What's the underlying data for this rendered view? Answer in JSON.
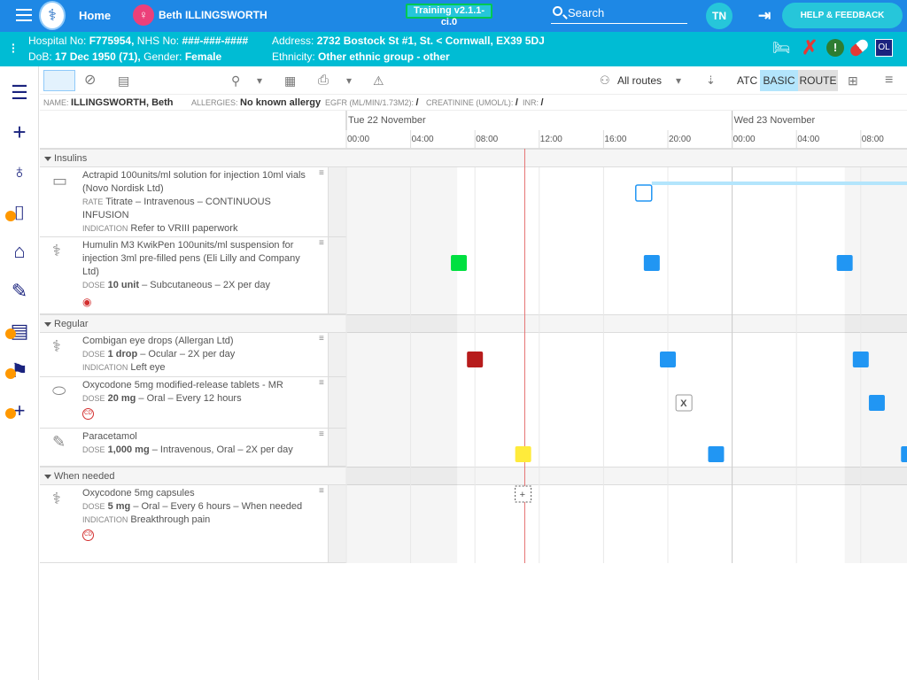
{
  "topbar": {
    "home": "Home",
    "patient": "Beth ILLINGSWORTH",
    "training": "Training v2.1.1-ci.0",
    "search": "Search",
    "initials": "TN",
    "help": "HELP & FEEDBACK"
  },
  "patient": {
    "hospital_no_label": "Hospital No:",
    "hospital_no": "F775954,",
    "nhs_label": "NHS No:",
    "nhs": "###-###-####",
    "dob_label": "DoB:",
    "dob": "17 Dec 1950 (71),",
    "gender_label": "Gender:",
    "gender": "Female",
    "address_label": "Address:",
    "address": "2732 Bostock St #1, St. < Cornwall, EX39 5DJ",
    "ethnicity_label": "Ethnicity:",
    "ethnicity": "Other ethnic group - other",
    "ol": "OL"
  },
  "toolbar": {
    "routes": "All routes",
    "atc": "ATC",
    "basic": "BASIC",
    "route": "ROUTE"
  },
  "namebar": {
    "name_label": "NAME:",
    "name": "ILLINGSWORTH, Beth",
    "allergies_label": "ALLERGIES:",
    "allergies": "No known allergy",
    "egfr_label": "EGFR (ML/MIN/1.73M2):",
    "egfr": "/",
    "creat_label": "CREATININE (UMOL/L):",
    "creat": "/",
    "inr_label": "INR:",
    "inr": "/"
  },
  "timeline": {
    "days": [
      {
        "label": "Tue 22 November"
      },
      {
        "label": "Wed 23 November"
      }
    ],
    "hours": [
      "00:00",
      "04:00",
      "08:00",
      "12:00",
      "16:00",
      "20:00",
      "00:00",
      "04:00",
      "08:00"
    ]
  },
  "sections": [
    "Insulins",
    "Regular",
    "When needed"
  ],
  "meds": [
    {
      "name": "Actrapid 100units/ml solution for injection 10ml vials (Novo Nordisk Ltd)",
      "l1": "RATE",
      "l1v": "Titrate – Intravenous – CONTINUOUS INFUSION",
      "l2": "INDICATION",
      "l2v": "Refer to VRIII paperwork"
    },
    {
      "name": "Humulin M3 KwikPen 100units/ml suspension for injection 3ml pre-filled pens (Eli Lilly and Company Ltd)",
      "l1": "DOSE",
      "l1b": "10 unit",
      "l1v": "– Subcutaneous – 2X per day"
    },
    {
      "name": "Combigan eye drops (Allergan Ltd)",
      "l1": "DOSE",
      "l1b": "1 drop",
      "l1v": "– Ocular – 2X per day",
      "l2": "INDICATION",
      "l2v": "Left eye"
    },
    {
      "name": "Oxycodone 5mg modified-release tablets - MR",
      "l1": "DOSE",
      "l1b": "20 mg",
      "l1v": "– Oral – Every 12 hours",
      "cd": "CD"
    },
    {
      "name": "Paracetamol",
      "l1": "DOSE",
      "l1b": "1,000 mg",
      "l1v": "– Intravenous, Oral – 2X per day"
    },
    {
      "name": "Oxycodone 5mg capsules",
      "l1": "DOSE",
      "l1b": "5 mg",
      "l1v": "– Oral – Every 6 hours – When needed",
      "l2": "INDICATION",
      "l2v": "Breakthrough pain",
      "cd": "CD"
    }
  ],
  "marks": {
    "x": "X",
    "plus": "+"
  },
  "colors": {
    "topbar": "#1e88e5",
    "patbar": "#00bcd4",
    "due": "#2196f3",
    "given": "#00e040",
    "missed": "#b71c1c",
    "now": "#ffeb3b"
  }
}
